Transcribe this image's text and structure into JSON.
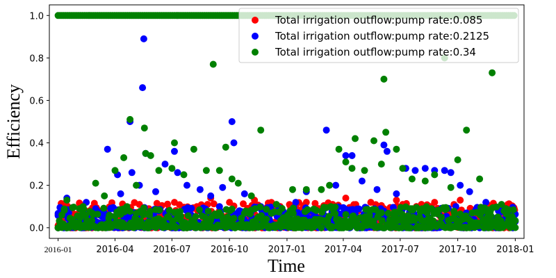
{
  "chart_data": {
    "type": "scatter",
    "title": "",
    "xlabel": "Time",
    "ylabel": "Efficiency",
    "xlim": [
      "2015-12-18",
      "2018-01-15"
    ],
    "ylim": [
      -0.05,
      1.05
    ],
    "x_ticks": [
      "2016-01",
      "2016-04",
      "2016-07",
      "2016-10",
      "2017-01",
      "2017-04",
      "2017-07",
      "2017-10",
      "2018-01"
    ],
    "x_tick_dates": [
      "2016-01-01",
      "2016-04-01",
      "2016-07-01",
      "2016-10-01",
      "2017-01-01",
      "2017-04-01",
      "2017-07-01",
      "2017-10-01",
      "2018-01-01"
    ],
    "y_ticks": [
      "0.0",
      "0.2",
      "0.4",
      "0.6",
      "0.8",
      "1.0"
    ],
    "y_tick_values": [
      0.0,
      0.2,
      0.4,
      0.6,
      0.8,
      1.0
    ],
    "grid": false,
    "legend_position": "top-right",
    "date_range": [
      "2016-01-01",
      "2017-12-31"
    ],
    "series": [
      {
        "name": "Total irrigation outflow:pump rate:0.085",
        "color": "#ff0000",
        "points": [
          [
            "2016-01-01",
            0.0
          ],
          [
            "2016-01-08",
            0.03
          ],
          [
            "2016-01-15",
            0.13
          ],
          [
            "2016-02-01",
            0.05
          ],
          [
            "2016-02-20",
            0.08
          ],
          [
            "2016-03-10",
            0.02
          ],
          [
            "2016-04-05",
            0.06
          ],
          [
            "2016-04-20",
            0.04
          ],
          [
            "2016-05-10",
            0.11
          ],
          [
            "2016-05-25",
            0.09
          ],
          [
            "2016-06-15",
            0.07
          ],
          [
            "2016-07-05",
            0.12
          ],
          [
            "2016-07-25",
            0.05
          ],
          [
            "2016-08-10",
            0.1
          ],
          [
            "2016-09-01",
            0.14
          ],
          [
            "2016-09-15",
            0.08
          ],
          [
            "2016-10-01",
            0.12
          ],
          [
            "2016-10-20",
            0.06
          ],
          [
            "2016-11-10",
            0.13
          ],
          [
            "2016-12-01",
            0.04
          ],
          [
            "2016-12-20",
            0.1
          ],
          [
            "2017-01-10",
            0.07
          ],
          [
            "2017-02-01",
            0.12
          ],
          [
            "2017-02-20",
            0.05
          ],
          [
            "2017-03-15",
            0.11
          ],
          [
            "2017-04-05",
            0.14
          ],
          [
            "2017-04-25",
            0.08
          ],
          [
            "2017-05-15",
            0.12
          ],
          [
            "2017-06-05",
            0.09
          ],
          [
            "2017-06-25",
            0.13
          ],
          [
            "2017-07-15",
            0.06
          ],
          [
            "2017-08-05",
            0.1
          ],
          [
            "2017-08-25",
            0.12
          ],
          [
            "2017-09-15",
            0.07
          ],
          [
            "2017-10-05",
            0.13
          ],
          [
            "2017-10-25",
            0.05
          ],
          [
            "2017-11-15",
            0.08
          ],
          [
            "2017-12-05",
            0.03
          ],
          [
            "2017-12-28",
            0.1
          ]
        ]
      },
      {
        "name": "Total irrigation outflow:pump rate:0.2125",
        "color": "#0000ff",
        "points": [
          [
            "2016-01-01",
            0.0
          ],
          [
            "2016-01-10",
            0.08
          ],
          [
            "2016-01-15",
            0.14
          ],
          [
            "2016-02-15",
            0.12
          ],
          [
            "2016-03-01",
            0.09
          ],
          [
            "2016-03-20",
            0.37
          ],
          [
            "2016-04-05",
            0.25
          ],
          [
            "2016-04-10",
            0.16
          ],
          [
            "2016-04-25",
            0.5
          ],
          [
            "2016-04-28",
            0.26
          ],
          [
            "2016-05-10",
            0.2
          ],
          [
            "2016-05-15",
            0.66
          ],
          [
            "2016-05-17",
            0.89
          ],
          [
            "2016-05-20",
            0.35
          ],
          [
            "2016-06-05",
            0.17
          ],
          [
            "2016-06-20",
            0.3
          ],
          [
            "2016-07-05",
            0.36
          ],
          [
            "2016-07-10",
            0.26
          ],
          [
            "2016-07-25",
            0.2
          ],
          [
            "2016-08-15",
            0.18
          ],
          [
            "2016-09-01",
            0.15
          ],
          [
            "2016-09-20",
            0.19
          ],
          [
            "2016-10-05",
            0.5
          ],
          [
            "2016-10-08",
            0.4
          ],
          [
            "2016-10-25",
            0.16
          ],
          [
            "2016-11-20",
            0.1
          ],
          [
            "2016-12-20",
            0.08
          ],
          [
            "2017-01-15",
            0.12
          ],
          [
            "2017-02-01",
            0.17
          ],
          [
            "2017-03-05",
            0.46
          ],
          [
            "2017-03-20",
            0.2
          ],
          [
            "2017-04-05",
            0.34
          ],
          [
            "2017-04-15",
            0.34
          ],
          [
            "2017-05-01",
            0.22
          ],
          [
            "2017-05-25",
            0.18
          ],
          [
            "2017-06-05",
            0.39
          ],
          [
            "2017-06-10",
            0.36
          ],
          [
            "2017-06-25",
            0.16
          ],
          [
            "2017-07-10",
            0.28
          ],
          [
            "2017-07-25",
            0.27
          ],
          [
            "2017-08-10",
            0.28
          ],
          [
            "2017-08-25",
            0.27
          ],
          [
            "2017-09-10",
            0.27
          ],
          [
            "2017-09-20",
            0.26
          ],
          [
            "2017-10-05",
            0.2
          ],
          [
            "2017-10-20",
            0.17
          ],
          [
            "2017-11-15",
            0.12
          ],
          [
            "2017-12-05",
            0.08
          ],
          [
            "2017-12-28",
            0.0
          ]
        ]
      },
      {
        "name": "Total irrigation outflow:pump rate:0.34",
        "color": "#008000",
        "points": [
          [
            "2016-01-01",
            0.0
          ],
          [
            "2016-01-15",
            0.13
          ],
          [
            "2016-02-10",
            0.1
          ],
          [
            "2016-03-01",
            0.21
          ],
          [
            "2016-03-15",
            0.15
          ],
          [
            "2016-04-01",
            0.27
          ],
          [
            "2016-04-15",
            0.33
          ],
          [
            "2016-04-25",
            0.51
          ],
          [
            "2016-05-05",
            0.2
          ],
          [
            "2016-05-18",
            0.47
          ],
          [
            "2016-05-20",
            0.35
          ],
          [
            "2016-05-28",
            0.34
          ],
          [
            "2016-06-10",
            0.27
          ],
          [
            "2016-07-01",
            0.28
          ],
          [
            "2016-07-05",
            0.4
          ],
          [
            "2016-07-20",
            0.25
          ],
          [
            "2016-08-05",
            0.37
          ],
          [
            "2016-08-25",
            0.27
          ],
          [
            "2016-09-05",
            0.77
          ],
          [
            "2016-09-15",
            0.27
          ],
          [
            "2016-09-25",
            0.38
          ],
          [
            "2016-10-05",
            0.23
          ],
          [
            "2016-10-15",
            0.21
          ],
          [
            "2016-11-05",
            0.15
          ],
          [
            "2016-11-20",
            0.46
          ],
          [
            "2016-12-15",
            0.11
          ],
          [
            "2017-01-10",
            0.18
          ],
          [
            "2017-02-01",
            0.18
          ],
          [
            "2017-02-25",
            0.18
          ],
          [
            "2017-03-10",
            0.2
          ],
          [
            "2017-03-25",
            0.37
          ],
          [
            "2017-04-05",
            0.31
          ],
          [
            "2017-04-15",
            0.28
          ],
          [
            "2017-04-20",
            0.42
          ],
          [
            "2017-05-05",
            0.27
          ],
          [
            "2017-05-20",
            0.41
          ],
          [
            "2017-06-01",
            0.3
          ],
          [
            "2017-06-05",
            0.7
          ],
          [
            "2017-06-08",
            0.45
          ],
          [
            "2017-06-25",
            0.37
          ],
          [
            "2017-07-05",
            0.28
          ],
          [
            "2017-07-20",
            0.23
          ],
          [
            "2017-08-10",
            0.22
          ],
          [
            "2017-08-25",
            0.25
          ],
          [
            "2017-09-10",
            0.8
          ],
          [
            "2017-09-20",
            0.19
          ],
          [
            "2017-10-01",
            0.32
          ],
          [
            "2017-10-15",
            0.46
          ],
          [
            "2017-11-05",
            0.23
          ],
          [
            "2017-11-25",
            0.73
          ],
          [
            "2017-12-10",
            0.11
          ],
          [
            "2017-12-28",
            0.02
          ]
        ]
      }
    ]
  }
}
